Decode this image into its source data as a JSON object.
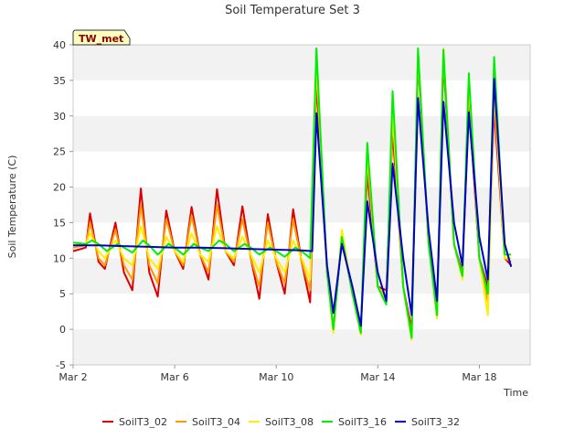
{
  "chart_data": {
    "type": "line",
    "title": "Soil Temperature Set 3",
    "xlabel": "Time",
    "ylabel": "Soil Temperature (C)",
    "badge": "TW_met",
    "xlim": [
      "2024-03-02",
      "2024-03-20"
    ],
    "ylim": [
      -5,
      40
    ],
    "yticks": [
      -5,
      0,
      5,
      10,
      15,
      20,
      25,
      30,
      35,
      40
    ],
    "xticks": [
      {
        "date": "2024-03-02",
        "label": "Mar 2"
      },
      {
        "date": "2024-03-06",
        "label": "Mar 6"
      },
      {
        "date": "2024-03-10",
        "label": "Mar 10"
      },
      {
        "date": "2024-03-14",
        "label": "Mar 14"
      },
      {
        "date": "2024-03-18",
        "label": "Mar 18"
      }
    ],
    "grid": "horizontal bands",
    "legend_position": "bottom",
    "series": [
      {
        "name": "SoilT3_02",
        "color": "#dd0000",
        "points": [
          [
            "2024-03-02",
            11.0
          ],
          [
            "2024-03-02T12",
            11.5
          ],
          [
            "2024-03-02T16",
            16.3
          ],
          [
            "2024-03-03",
            9.5
          ],
          [
            "2024-03-03T06",
            8.5
          ],
          [
            "2024-03-03T16",
            15.0
          ],
          [
            "2024-03-04",
            8.0
          ],
          [
            "2024-03-04T08",
            5.5
          ],
          [
            "2024-03-04T16",
            19.8
          ],
          [
            "2024-03-05",
            8.0
          ],
          [
            "2024-03-05T08",
            4.6
          ],
          [
            "2024-03-05T16",
            16.7
          ],
          [
            "2024-03-06",
            11.0
          ],
          [
            "2024-03-06T08",
            8.5
          ],
          [
            "2024-03-06T16",
            17.2
          ],
          [
            "2024-03-07",
            10.5
          ],
          [
            "2024-03-07T08",
            7.0
          ],
          [
            "2024-03-07T16",
            19.7
          ],
          [
            "2024-03-08",
            11.0
          ],
          [
            "2024-03-08T08",
            9.0
          ],
          [
            "2024-03-08T16",
            17.3
          ],
          [
            "2024-03-09",
            10.0
          ],
          [
            "2024-03-09T08",
            4.3
          ],
          [
            "2024-03-09T16",
            16.2
          ],
          [
            "2024-03-10",
            9.5
          ],
          [
            "2024-03-10T08",
            5.0
          ],
          [
            "2024-03-10T16",
            16.9
          ],
          [
            "2024-03-11",
            9.5
          ],
          [
            "2024-03-11T08",
            3.8
          ],
          [
            "2024-03-11T14",
            35.0
          ],
          [
            "2024-03-12",
            8.0
          ],
          [
            "2024-03-12T06",
            0.0
          ],
          [
            "2024-03-12T14",
            13.0
          ],
          [
            "2024-03-13",
            5.0
          ],
          [
            "2024-03-13T08",
            0.0
          ],
          [
            "2024-03-13T14",
            22.0
          ],
          [
            "2024-03-14",
            6.0
          ],
          [
            "2024-03-14T08",
            5.5
          ],
          [
            "2024-03-14T14",
            28.0
          ],
          [
            "2024-03-15",
            6.0
          ],
          [
            "2024-03-15T08",
            0.0
          ],
          [
            "2024-03-15T14",
            38.0
          ],
          [
            "2024-03-16",
            12.0
          ],
          [
            "2024-03-16T08",
            2.5
          ],
          [
            "2024-03-16T14",
            38.0
          ],
          [
            "2024-03-17",
            12.0
          ],
          [
            "2024-03-17T08",
            8.0
          ],
          [
            "2024-03-17T14",
            32.0
          ],
          [
            "2024-03-18",
            10.0
          ],
          [
            "2024-03-18T08",
            6.0
          ],
          [
            "2024-03-18T14",
            31.0
          ],
          [
            "2024-03-19",
            10.0
          ],
          [
            "2024-03-19T06",
            9.0
          ]
        ]
      },
      {
        "name": "SoilT3_04",
        "color": "#ff9900",
        "points": [
          [
            "2024-03-02",
            11.5
          ],
          [
            "2024-03-02T12",
            11.8
          ],
          [
            "2024-03-02T16",
            15.0
          ],
          [
            "2024-03-03",
            10.0
          ],
          [
            "2024-03-03T06",
            9.0
          ],
          [
            "2024-03-03T16",
            14.0
          ],
          [
            "2024-03-04",
            9.0
          ],
          [
            "2024-03-04T08",
            7.0
          ],
          [
            "2024-03-04T16",
            17.5
          ],
          [
            "2024-03-05",
            9.0
          ],
          [
            "2024-03-05T08",
            6.5
          ],
          [
            "2024-03-05T16",
            15.5
          ],
          [
            "2024-03-06",
            11.0
          ],
          [
            "2024-03-06T08",
            9.0
          ],
          [
            "2024-03-06T16",
            16.0
          ],
          [
            "2024-03-07",
            10.5
          ],
          [
            "2024-03-07T08",
            8.0
          ],
          [
            "2024-03-07T16",
            17.5
          ],
          [
            "2024-03-08",
            11.0
          ],
          [
            "2024-03-08T08",
            9.5
          ],
          [
            "2024-03-08T16",
            15.5
          ],
          [
            "2024-03-09",
            10.0
          ],
          [
            "2024-03-09T08",
            6.0
          ],
          [
            "2024-03-09T16",
            15.0
          ],
          [
            "2024-03-10",
            9.5
          ],
          [
            "2024-03-10T08",
            6.5
          ],
          [
            "2024-03-10T16",
            15.5
          ],
          [
            "2024-03-11",
            9.5
          ],
          [
            "2024-03-11T08",
            5.5
          ],
          [
            "2024-03-11T14",
            37.0
          ],
          [
            "2024-03-12",
            8.0
          ],
          [
            "2024-03-12T06",
            -0.3
          ],
          [
            "2024-03-12T14",
            13.5
          ],
          [
            "2024-03-13",
            5.0
          ],
          [
            "2024-03-13T08",
            -0.5
          ],
          [
            "2024-03-13T14",
            24.0
          ],
          [
            "2024-03-14",
            6.0
          ],
          [
            "2024-03-14T08",
            4.5
          ],
          [
            "2024-03-14T14",
            30.0
          ],
          [
            "2024-03-15",
            6.0
          ],
          [
            "2024-03-15T08",
            -1.0
          ],
          [
            "2024-03-15T14",
            38.5
          ],
          [
            "2024-03-16",
            12.0
          ],
          [
            "2024-03-16T08",
            2.0
          ],
          [
            "2024-03-16T14",
            39.0
          ],
          [
            "2024-03-17",
            12.0
          ],
          [
            "2024-03-17T08",
            7.5
          ],
          [
            "2024-03-17T14",
            34.0
          ],
          [
            "2024-03-18",
            10.0
          ],
          [
            "2024-03-18T08",
            4.0
          ],
          [
            "2024-03-18T14",
            33.0
          ],
          [
            "2024-03-19",
            10.0
          ],
          [
            "2024-03-19T06",
            9.5
          ]
        ]
      },
      {
        "name": "SoilT3_08",
        "color": "#ffee00",
        "points": [
          [
            "2024-03-02",
            11.8
          ],
          [
            "2024-03-02T12",
            12.0
          ],
          [
            "2024-03-02T16",
            13.5
          ],
          [
            "2024-03-03",
            11.0
          ],
          [
            "2024-03-03T06",
            10.0
          ],
          [
            "2024-03-03T16",
            12.5
          ],
          [
            "2024-03-04",
            10.0
          ],
          [
            "2024-03-04T08",
            9.0
          ],
          [
            "2024-03-04T16",
            14.5
          ],
          [
            "2024-03-05",
            10.0
          ],
          [
            "2024-03-05T08",
            8.5
          ],
          [
            "2024-03-05T16",
            13.0
          ],
          [
            "2024-03-06",
            11.0
          ],
          [
            "2024-03-06T08",
            9.5
          ],
          [
            "2024-03-06T16",
            13.5
          ],
          [
            "2024-03-07",
            10.5
          ],
          [
            "2024-03-07T08",
            9.5
          ],
          [
            "2024-03-07T16",
            14.5
          ],
          [
            "2024-03-08",
            11.0
          ],
          [
            "2024-03-08T08",
            10.0
          ],
          [
            "2024-03-08T16",
            13.0
          ],
          [
            "2024-03-09",
            10.5
          ],
          [
            "2024-03-09T08",
            8.0
          ],
          [
            "2024-03-09T16",
            12.5
          ],
          [
            "2024-03-10",
            10.0
          ],
          [
            "2024-03-10T08",
            8.0
          ],
          [
            "2024-03-10T16",
            12.5
          ],
          [
            "2024-03-11",
            10.0
          ],
          [
            "2024-03-11T08",
            7.0
          ],
          [
            "2024-03-11T14",
            38.0
          ],
          [
            "2024-03-12",
            8.0
          ],
          [
            "2024-03-12T06",
            -0.5
          ],
          [
            "2024-03-12T14",
            14.0
          ],
          [
            "2024-03-13",
            5.0
          ],
          [
            "2024-03-13T08",
            -0.8
          ],
          [
            "2024-03-13T14",
            25.0
          ],
          [
            "2024-03-14",
            6.0
          ],
          [
            "2024-03-14T08",
            4.0
          ],
          [
            "2024-03-14T14",
            31.0
          ],
          [
            "2024-03-15",
            6.0
          ],
          [
            "2024-03-15T08",
            -1.5
          ],
          [
            "2024-03-15T14",
            39.0
          ],
          [
            "2024-03-16",
            12.0
          ],
          [
            "2024-03-16T08",
            1.5
          ],
          [
            "2024-03-16T14",
            39.5
          ],
          [
            "2024-03-17",
            12.0
          ],
          [
            "2024-03-17T08",
            7.0
          ],
          [
            "2024-03-17T14",
            35.0
          ],
          [
            "2024-03-18",
            10.0
          ],
          [
            "2024-03-18T08",
            2.0
          ],
          [
            "2024-03-18T14",
            34.0
          ],
          [
            "2024-03-19",
            10.0
          ],
          [
            "2024-03-19T06",
            10.0
          ]
        ]
      },
      {
        "name": "SoilT3_16",
        "color": "#00ee00",
        "points": [
          [
            "2024-03-02",
            12.2
          ],
          [
            "2024-03-02T12",
            12.0
          ],
          [
            "2024-03-02T18",
            12.5
          ],
          [
            "2024-03-03",
            12.0
          ],
          [
            "2024-03-03T08",
            11.0
          ],
          [
            "2024-03-03T18",
            12.0
          ],
          [
            "2024-03-04",
            11.5
          ],
          [
            "2024-03-04T08",
            10.8
          ],
          [
            "2024-03-04T18",
            12.5
          ],
          [
            "2024-03-05",
            11.8
          ],
          [
            "2024-03-05T08",
            10.5
          ],
          [
            "2024-03-05T18",
            12.0
          ],
          [
            "2024-03-06",
            11.5
          ],
          [
            "2024-03-06T08",
            10.5
          ],
          [
            "2024-03-06T18",
            12.0
          ],
          [
            "2024-03-07",
            11.5
          ],
          [
            "2024-03-07T08",
            11.0
          ],
          [
            "2024-03-07T18",
            12.5
          ],
          [
            "2024-03-08",
            12.0
          ],
          [
            "2024-03-08T08",
            11.0
          ],
          [
            "2024-03-08T18",
            12.0
          ],
          [
            "2024-03-09",
            11.5
          ],
          [
            "2024-03-09T08",
            10.5
          ],
          [
            "2024-03-09T18",
            11.5
          ],
          [
            "2024-03-10",
            11.0
          ],
          [
            "2024-03-10T08",
            10.2
          ],
          [
            "2024-03-10T18",
            11.5
          ],
          [
            "2024-03-11",
            11.0
          ],
          [
            "2024-03-11T08",
            10.0
          ],
          [
            "2024-03-11T14",
            39.5
          ],
          [
            "2024-03-12",
            8.0
          ],
          [
            "2024-03-12T06",
            0.0
          ],
          [
            "2024-03-12T14",
            13.0
          ],
          [
            "2024-03-13",
            5.0
          ],
          [
            "2024-03-13T08",
            -0.5
          ],
          [
            "2024-03-13T14",
            26.2
          ],
          [
            "2024-03-14",
            6.0
          ],
          [
            "2024-03-14T08",
            3.5
          ],
          [
            "2024-03-14T14",
            33.5
          ],
          [
            "2024-03-15",
            6.0
          ],
          [
            "2024-03-15T08",
            -1.2
          ],
          [
            "2024-03-15T14",
            39.5
          ],
          [
            "2024-03-16",
            12.0
          ],
          [
            "2024-03-16T08",
            2.0
          ],
          [
            "2024-03-16T14",
            39.3
          ],
          [
            "2024-03-17",
            12.0
          ],
          [
            "2024-03-17T08",
            7.5
          ],
          [
            "2024-03-17T14",
            36.0
          ],
          [
            "2024-03-18",
            10.0
          ],
          [
            "2024-03-18T08",
            5.0
          ],
          [
            "2024-03-18T14",
            38.3
          ],
          [
            "2024-03-19",
            10.5
          ],
          [
            "2024-03-19T06",
            10.5
          ]
        ]
      },
      {
        "name": "SoilT3_32",
        "color": "#0000cc",
        "points": [
          [
            "2024-03-02",
            11.8
          ],
          [
            "2024-03-03",
            11.8
          ],
          [
            "2024-03-04",
            11.7
          ],
          [
            "2024-03-05",
            11.6
          ],
          [
            "2024-03-06",
            11.5
          ],
          [
            "2024-03-07",
            11.5
          ],
          [
            "2024-03-08",
            11.4
          ],
          [
            "2024-03-09",
            11.3
          ],
          [
            "2024-03-10",
            11.2
          ],
          [
            "2024-03-11",
            11.1
          ],
          [
            "2024-03-11T10",
            11.0
          ],
          [
            "2024-03-11T14",
            30.4
          ],
          [
            "2024-03-12",
            9.0
          ],
          [
            "2024-03-12T06",
            2.3
          ],
          [
            "2024-03-12T14",
            12.0
          ],
          [
            "2024-03-13",
            6.0
          ],
          [
            "2024-03-13T08",
            0.5
          ],
          [
            "2024-03-13T14",
            18.0
          ],
          [
            "2024-03-14",
            8.0
          ],
          [
            "2024-03-14T08",
            4.0
          ],
          [
            "2024-03-14T14",
            23.3
          ],
          [
            "2024-03-15",
            10.0
          ],
          [
            "2024-03-15T08",
            2.0
          ],
          [
            "2024-03-15T14",
            32.5
          ],
          [
            "2024-03-16",
            14.0
          ],
          [
            "2024-03-16T08",
            4.0
          ],
          [
            "2024-03-16T14",
            32.0
          ],
          [
            "2024-03-17",
            15.0
          ],
          [
            "2024-03-17T08",
            9.0
          ],
          [
            "2024-03-17T14",
            30.5
          ],
          [
            "2024-03-18",
            13.0
          ],
          [
            "2024-03-18T08",
            7.0
          ],
          [
            "2024-03-18T14",
            35.2
          ],
          [
            "2024-03-19",
            12.0
          ],
          [
            "2024-03-19T06",
            8.8
          ]
        ]
      }
    ]
  }
}
